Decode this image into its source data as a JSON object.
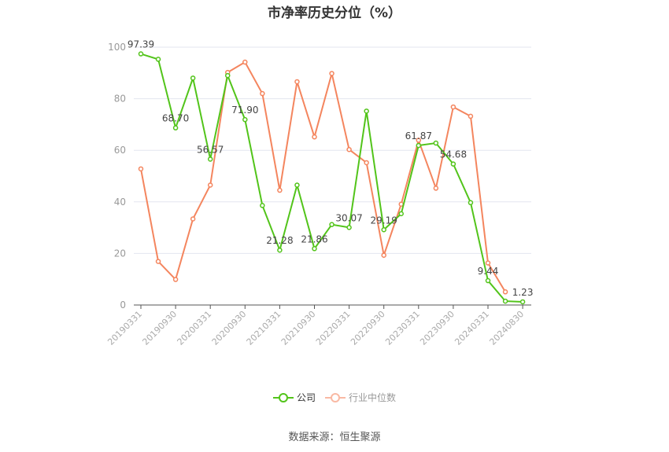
{
  "title": "市净率历史分位（%）",
  "legend": {
    "company": "公司",
    "industry": "行业中位数"
  },
  "source": "数据来源：恒生聚源",
  "colors": {
    "company": "#52c41a",
    "industry": "#f4855e",
    "grid": "#e3e6ef",
    "axis": "#555555"
  },
  "chart_data": {
    "type": "line",
    "title": "市净率历史分位（%）",
    "xlabel": "",
    "ylabel": "",
    "ylim": [
      0,
      100
    ],
    "yticks": [
      0,
      20,
      40,
      60,
      80,
      100
    ],
    "grid": true,
    "legend_position": "bottom",
    "x": [
      "20190331",
      "20190630",
      "20190930",
      "20191231",
      "20200331",
      "20200630",
      "20200930",
      "20201231",
      "20210331",
      "20210630",
      "20210930",
      "20211231",
      "20220331",
      "20220630",
      "20220930",
      "20221231",
      "20230331",
      "20230630",
      "20230930",
      "20231231",
      "20240331",
      "20240630",
      "20240830"
    ],
    "xtick_labels": [
      "20190331",
      "20190930",
      "20200331",
      "20200930",
      "20210331",
      "20210930",
      "20220331",
      "20220930",
      "20230331",
      "20230930",
      "20240331",
      "20240830"
    ],
    "series": [
      {
        "name": "公司",
        "values": [
          97.39,
          95.3,
          68.7,
          88.0,
          56.57,
          89.0,
          71.9,
          38.6,
          21.28,
          46.5,
          21.86,
          31.2,
          30.07,
          75.2,
          29.19,
          35.4,
          61.87,
          62.8,
          54.68,
          39.7,
          9.44,
          1.5,
          1.23
        ],
        "labels": {
          "0": "97.39",
          "2": "68.70",
          "4": "56.57",
          "6": "71.90",
          "8": "21.28",
          "10": "21.86",
          "12": "30.07",
          "14": "29.19",
          "16": "61.87",
          "18": "54.68",
          "20": "9.44",
          "22": "1.23"
        }
      },
      {
        "name": "行业中位数",
        "values": [
          52.8,
          16.9,
          9.9,
          33.4,
          46.5,
          90.2,
          94.2,
          82.0,
          44.5,
          86.6,
          65.2,
          89.8,
          60.3,
          55.2,
          19.3,
          39.1,
          63.9,
          45.3,
          76.8,
          73.2,
          16.3,
          5.1,
          null
        ]
      }
    ]
  }
}
